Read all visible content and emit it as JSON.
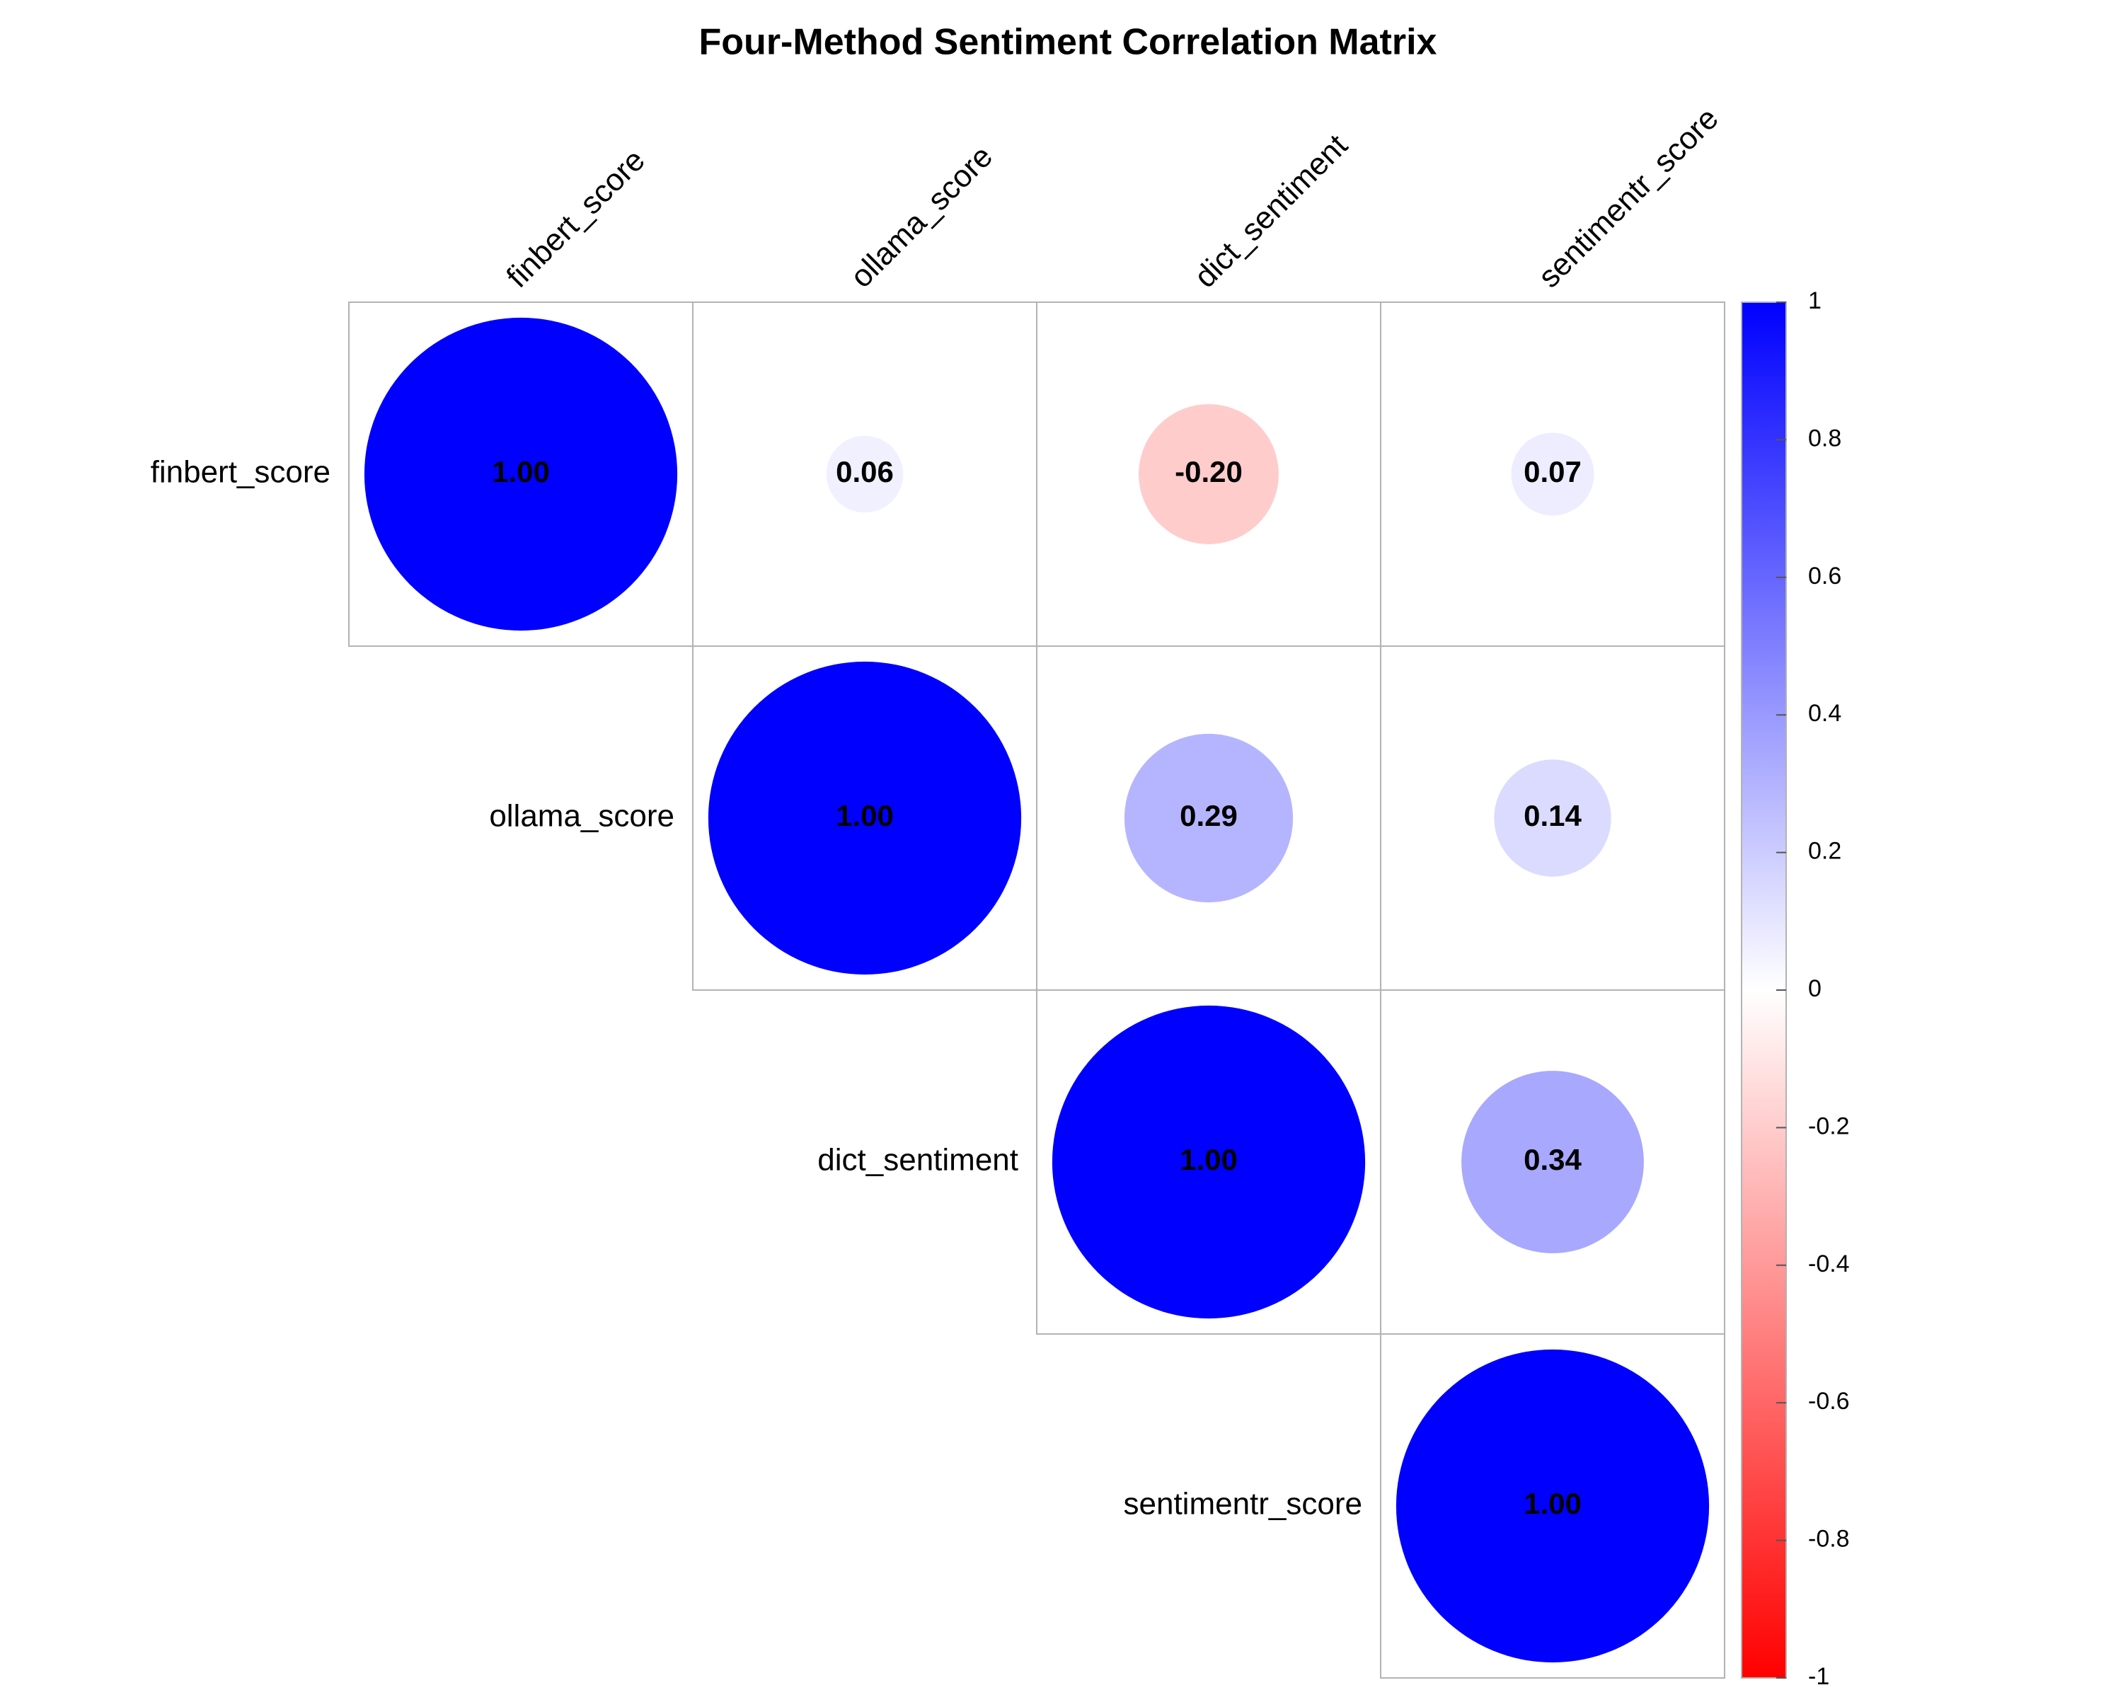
{
  "chart_data": {
    "type": "heatmap",
    "subtype": "correlation-circles",
    "title": "Four-Method Sentiment Correlation Matrix",
    "layout": "upper-triangle",
    "labels": [
      "finbert_score",
      "ollama_score",
      "dict_sentiment",
      "sentimentr_score"
    ],
    "matrix": [
      [
        1.0,
        0.06,
        -0.2,
        0.07
      ],
      [
        0.06,
        1.0,
        0.29,
        0.14
      ],
      [
        -0.2,
        0.29,
        1.0,
        0.34
      ],
      [
        0.07,
        0.14,
        0.34,
        1.0
      ]
    ],
    "value_format": "2 decimals",
    "colorbar": {
      "range": [
        -1,
        1
      ],
      "ticks": [
        "-1",
        "-0.8",
        "-0.6",
        "-0.4",
        "-0.2",
        "0",
        "0.2",
        "0.4",
        "0.6",
        "0.8",
        "1"
      ],
      "tick_values": [
        -1,
        -0.8,
        -0.6,
        -0.4,
        -0.2,
        0,
        0.2,
        0.4,
        0.6,
        0.8,
        1
      ],
      "colors": {
        "negative": "#FF0000",
        "zero": "#FFFFFF",
        "positive": "#0000FF"
      }
    },
    "grid_color": "#B3B3B3",
    "legend": "right"
  }
}
